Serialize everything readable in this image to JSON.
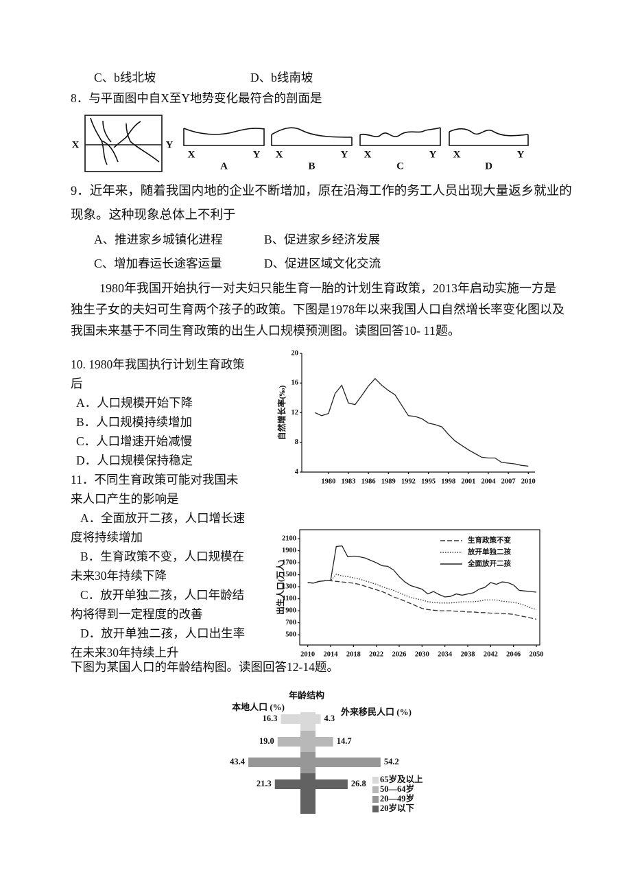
{
  "q7_options": [
    "C、b线北坡",
    "D、b线南坡"
  ],
  "q8": {
    "text": "8．与平面图中自X至Y地势变化最符合的剖面是",
    "map_labels": [
      "X",
      "Y"
    ],
    "profiles": [
      {
        "label": "A",
        "ends": [
          "X",
          "Y"
        ]
      },
      {
        "label": "B",
        "ends": [
          "X",
          "Y"
        ]
      },
      {
        "label": "C",
        "ends": [
          "X",
          "Y"
        ]
      },
      {
        "label": "D",
        "ends": [
          "X",
          "Y"
        ]
      }
    ]
  },
  "q9": {
    "text": "9．近年来，随着我国内地的企业不断增加，原在沿海工作的务工人员出现大量返乡就业的现象。这种现象总体上不利于",
    "options": [
      "A、推进家乡城镇化进程",
      "B、促进家乡经济发展",
      "C、增加春运长途客运量",
      "D、促进区域文化交流"
    ]
  },
  "intro": "1980年我国开始执行一对夫妇只能生育一胎的计划生育政策，2013年启动实施一方是独生子女的夫妇可生育两个孩子的政策。下图是1978年以来我国人口自然增长率变化图以及我国未来基于不同生育政策的出生人口规模预测图。读图回答10- 11题。",
  "q10": {
    "text": "10. 1980年我国执行计划生育政策后",
    "options": [
      "A．人口规模开始下降",
      "B．人口规模持续增加",
      "C．人口增速开始减慢",
      "D．人口规模保持稳定"
    ]
  },
  "q11": {
    "text": "11．不同生育政策可能对我国未来人口产生的影响是",
    "options": [
      "A．全面放开二孩，人口增长速度将持续增加",
      "B．生育政策不变，人口规模在未来30年持续下降",
      "C．放开单独二孩，人口年龄结构将得到一定程度的改善",
      "D．放开单独二孩，人口出生率在未来30年持续上升"
    ]
  },
  "q12_intro": "下图为某国人口的年龄结构图。读图回答12-14题。",
  "chart_data": [
    {
      "type": "line",
      "y_label": "自然增长率(‰)",
      "frame": "axes",
      "color": "#222",
      "x": [
        1978,
        1979,
        1980,
        1981,
        1982,
        1983,
        1984,
        1985,
        1986,
        1987,
        1988,
        1989,
        1990,
        1991,
        1992,
        1993,
        1994,
        1995,
        1996,
        1997,
        1998,
        1999,
        2000,
        2001,
        2002,
        2003,
        2004,
        2005,
        2006,
        2007,
        2008,
        2009,
        2010
      ],
      "values": [
        12.0,
        11.6,
        11.9,
        14.6,
        15.7,
        13.3,
        13.1,
        14.3,
        15.6,
        16.6,
        15.7,
        15.0,
        14.4,
        13.0,
        11.6,
        11.5,
        11.2,
        10.6,
        10.4,
        10.1,
        9.1,
        8.2,
        7.6,
        7.0,
        6.5,
        6.0,
        5.9,
        5.9,
        5.3,
        5.2,
        5.1,
        4.9,
        4.8
      ],
      "xlim": [
        1976,
        2011
      ],
      "ylim": [
        4,
        20
      ],
      "xticks": [
        1980,
        1983,
        1986,
        1989,
        1992,
        1995,
        1998,
        2001,
        2004,
        2007,
        2010
      ],
      "yticks": [
        4,
        8,
        12,
        16,
        20
      ]
    },
    {
      "type": "line",
      "y_label": "出生人口(万人)",
      "frame": "box",
      "legend": "upper right",
      "x": [
        2010,
        2011,
        2012,
        2013,
        2014,
        2015,
        2016,
        2017,
        2018,
        2019,
        2020,
        2021,
        2022,
        2023,
        2024,
        2025,
        2026,
        2027,
        2028,
        2029,
        2030,
        2031,
        2032,
        2033,
        2034,
        2035,
        2036,
        2037,
        2038,
        2039,
        2040,
        2041,
        2042,
        2043,
        2044,
        2045,
        2046,
        2047,
        2048,
        2049,
        2050
      ],
      "series": [
        {
          "name": "生育政策不变",
          "color": "#333",
          "dash": "dashed",
          "values": [
            1370,
            1360,
            1390,
            1400,
            1400,
            1390,
            1380,
            1370,
            1360,
            1340,
            1310,
            1280,
            1250,
            1220,
            1180,
            1130,
            1100,
            1060,
            1020,
            980,
            940,
            920,
            910,
            900,
            900,
            900,
            890,
            890,
            880,
            880,
            870,
            870,
            860,
            860,
            850,
            850,
            840,
            820,
            800,
            780,
            760
          ]
        },
        {
          "name": "放开单独二孩",
          "color": "#333",
          "dash": "dotted",
          "values": [
            1370,
            1360,
            1390,
            1400,
            1400,
            1510,
            1480,
            1470,
            1450,
            1430,
            1400,
            1370,
            1340,
            1300,
            1270,
            1240,
            1200,
            1160,
            1120,
            1100,
            1080,
            1050,
            1040,
            1030,
            1030,
            1030,
            1040,
            1050,
            1050,
            1050,
            1060,
            1080,
            1080,
            1080,
            1060,
            1050,
            1040,
            1020,
            990,
            950,
            920
          ]
        },
        {
          "name": "全面放开二孩",
          "color": "#222",
          "dash": "solid",
          "values": [
            1370,
            1360,
            1390,
            1400,
            1400,
            1970,
            1980,
            1800,
            1810,
            1800,
            1780,
            1740,
            1700,
            1650,
            1640,
            1580,
            1470,
            1380,
            1320,
            1290,
            1260,
            1180,
            1220,
            1170,
            1130,
            1140,
            1180,
            1160,
            1180,
            1200,
            1260,
            1290,
            1370,
            1340,
            1380,
            1370,
            1330,
            1240,
            1230,
            1220,
            1210
          ]
        }
      ],
      "xlim": [
        2008.6,
        2050.6
      ],
      "ylim": [
        330,
        2250
      ],
      "xticks": [
        2010,
        2014,
        2018,
        2022,
        2026,
        2030,
        2034,
        2038,
        2042,
        2046,
        2050
      ],
      "yticks": [
        500,
        700,
        900,
        1100,
        1300,
        1500,
        1700,
        1900,
        2100
      ]
    },
    {
      "type": "pyramid",
      "title": "年龄结构",
      "categories": [
        "65岁及以上",
        "50—64岁",
        "20—49岁",
        "20岁以下"
      ],
      "colors": [
        "#d9d9d9",
        "#b8b8b8",
        "#979797",
        "#626262"
      ],
      "series": [
        {
          "name": "本地人口 (%)",
          "values": [
            16.3,
            19.0,
            43.4,
            21.3
          ],
          "value_labels": [
            "16.3",
            "19.0",
            "43.4",
            "21.3"
          ]
        },
        {
          "name": "外来移民人口 (%)",
          "values": [
            4.3,
            14.7,
            54.2,
            26.8
          ],
          "value_labels": [
            "4.3",
            "14.7",
            "54.2",
            "26.8"
          ]
        }
      ]
    }
  ]
}
